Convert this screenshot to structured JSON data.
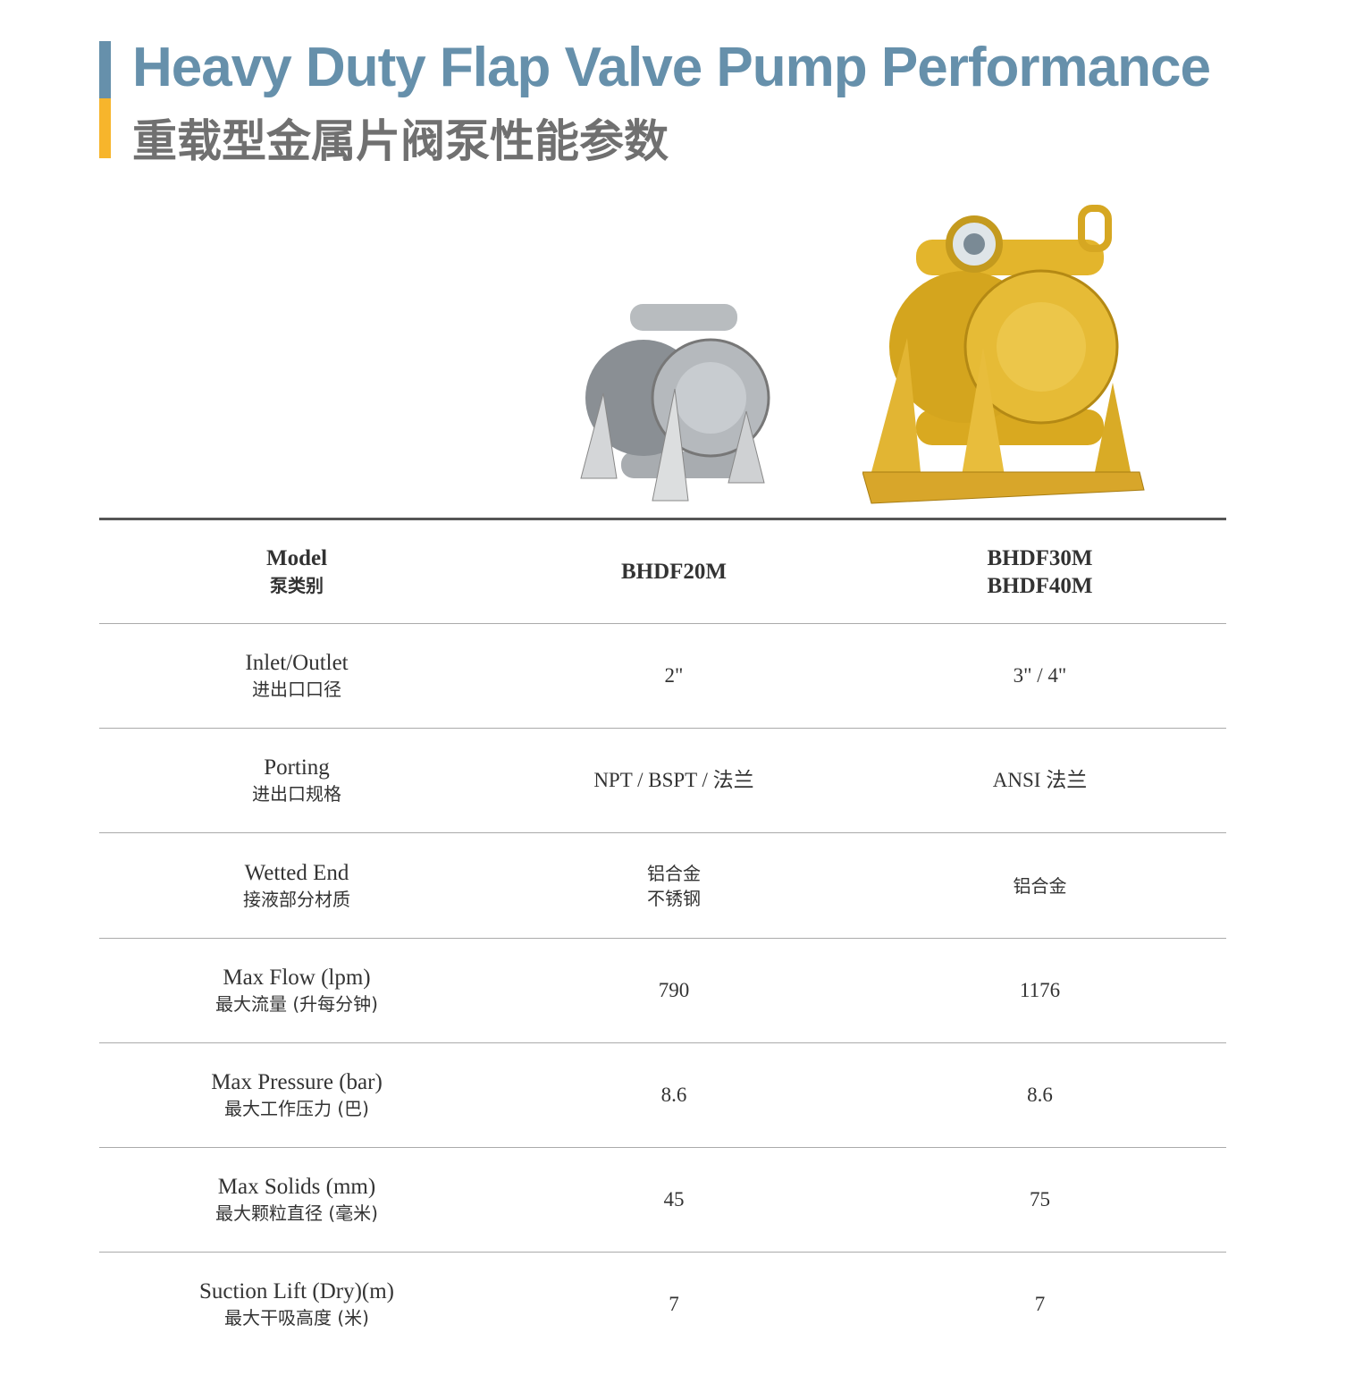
{
  "title": {
    "en": "Heavy Duty Flap Valve Pump Performance",
    "cn": "重载型金属片阀泵性能参数"
  },
  "colors": {
    "accent_blue": "#6690ab",
    "accent_yellow": "#f7b52c",
    "heading_gray": "#707070"
  },
  "images": {
    "pump_small": "silver aluminum diaphragm pump",
    "pump_large": "yellow diaphragm pump on frame"
  },
  "table": {
    "header": {
      "label_en": "Model",
      "label_cn": "泵类别",
      "col1": "BHDF20M",
      "col2_line1": "BHDF30M",
      "col2_line2": "BHDF40M"
    },
    "rows": [
      {
        "en": "Inlet/Outlet",
        "cn": "进出口口径",
        "v1": "2\"",
        "v2": "3\" / 4\""
      },
      {
        "en": "Porting",
        "cn": "进出口规格",
        "v1": "NPT / BSPT / 法兰",
        "v2": "ANSI 法兰"
      },
      {
        "en": "Wetted End",
        "cn": "接液部分材质",
        "v1": "铝合金",
        "v1b": "不锈钢",
        "v2": "铝合金"
      },
      {
        "en": "Max Flow (lpm)",
        "cn": "最大流量 (升每分钟)",
        "v1": "790",
        "v2": "1176"
      },
      {
        "en": "Max Pressure (bar)",
        "cn": "最大工作压力 (巴)",
        "v1": "8.6",
        "v2": "8.6"
      },
      {
        "en": "Max Solids (mm)",
        "cn": "最大颗粒直径 (毫米)",
        "v1": "45",
        "v2": "75"
      },
      {
        "en": "Suction Lift (Dry)(m)",
        "cn": "最大干吸高度 (米)",
        "v1": "7",
        "v2": "7"
      }
    ]
  }
}
